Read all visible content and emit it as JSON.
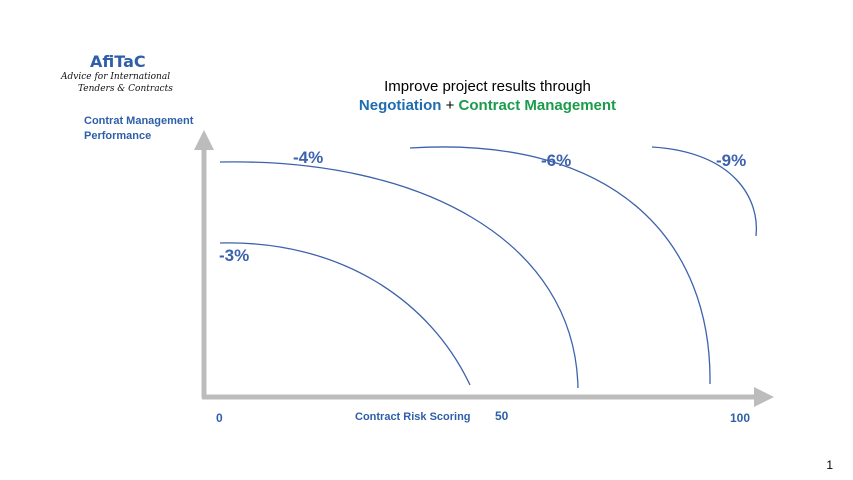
{
  "logo": {
    "name": "AfiTaC",
    "tagline_line1": "Advice for International",
    "tagline_line2": "Tenders & Contracts"
  },
  "header": {
    "title": "Improve project results through",
    "subtitle_part1": "Negotiation",
    "subtitle_plus": "+",
    "subtitle_part2": "Contract Management"
  },
  "axes": {
    "y_label_line1": "Contrat Management",
    "y_label_line2": "Performance",
    "x_label": "Contract Risk Scoring",
    "x_ticks": [
      "0",
      "50",
      "100"
    ]
  },
  "curves": [
    {
      "label": "-3%"
    },
    {
      "label": "-4%"
    },
    {
      "label": "-6%"
    },
    {
      "label": "-9%"
    }
  ],
  "colors": {
    "brand_blue": "#2e5fa8",
    "axis_gray": "#bcbcbc",
    "curve_blue": "#3d62ad",
    "negotiation_blue": "#1f6cb0",
    "contract_green": "#1a9c4a"
  },
  "page_number": "1"
}
